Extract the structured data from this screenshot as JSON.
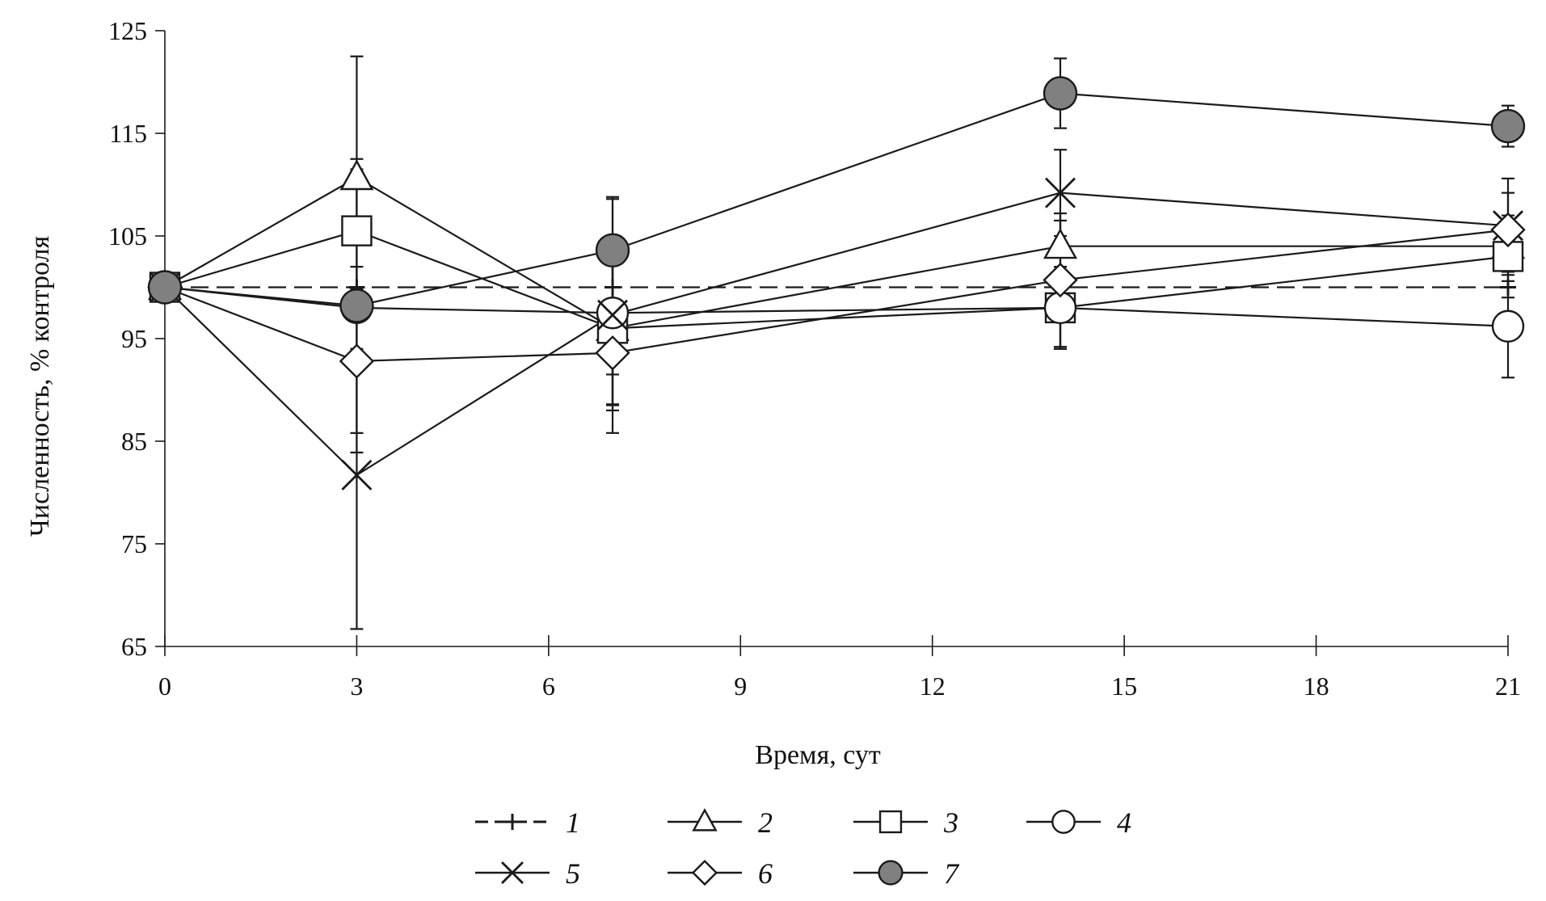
{
  "chart_data": {
    "type": "line",
    "title": "",
    "xlabel": "Время, сут",
    "ylabel": "Численность, % контроля",
    "xlim": [
      0,
      21
    ],
    "ylim": [
      65,
      125
    ],
    "x_ticks": [
      0,
      3,
      6,
      9,
      12,
      15,
      18,
      21
    ],
    "y_ticks": [
      65,
      75,
      85,
      95,
      105,
      115,
      125
    ],
    "grid": false,
    "legend_position": "bottom",
    "x": [
      0,
      3,
      7,
      14,
      21
    ],
    "series": [
      {
        "name": "1",
        "marker": "plus",
        "dashed": true,
        "values": [
          100,
          100,
          100,
          100,
          100
        ],
        "errors": [
          0,
          0,
          0,
          0,
          0
        ]
      },
      {
        "name": "2",
        "marker": "triangle",
        "dashed": false,
        "values": [
          100,
          110.7,
          96,
          104,
          104
        ],
        "errors": [
          0,
          11.8,
          7.5,
          2.5,
          2.5
        ]
      },
      {
        "name": "3",
        "marker": "square",
        "dashed": false,
        "values": [
          100,
          105.5,
          96,
          98,
          103
        ],
        "errors": [
          0,
          6,
          8,
          4,
          4
        ]
      },
      {
        "name": "4",
        "marker": "circle-open",
        "dashed": false,
        "values": [
          100,
          98,
          97.5,
          98,
          96.2
        ],
        "errors": [
          0,
          4,
          6,
          4,
          5
        ]
      },
      {
        "name": "5",
        "marker": "x",
        "dashed": false,
        "values": [
          100,
          81.7,
          97.3,
          109.2,
          106
        ],
        "errors": [
          0,
          15,
          11.5,
          4.2,
          3.2
        ]
      },
      {
        "name": "6",
        "marker": "diamond",
        "dashed": false,
        "values": [
          100,
          92.8,
          93.6,
          100.7,
          105.6
        ],
        "errors": [
          0,
          7,
          5,
          6.5,
          5
        ]
      },
      {
        "name": "7",
        "marker": "circle-filled",
        "dashed": false,
        "values": [
          100,
          98.2,
          103.6,
          118.9,
          115.7
        ],
        "errors": [
          0,
          14.3,
          5,
          3.4,
          2
        ]
      }
    ]
  },
  "colors": {
    "line": "#1a1a1a",
    "marker_fill_open": "#ffffff",
    "marker_fill_filled": "#808080"
  }
}
